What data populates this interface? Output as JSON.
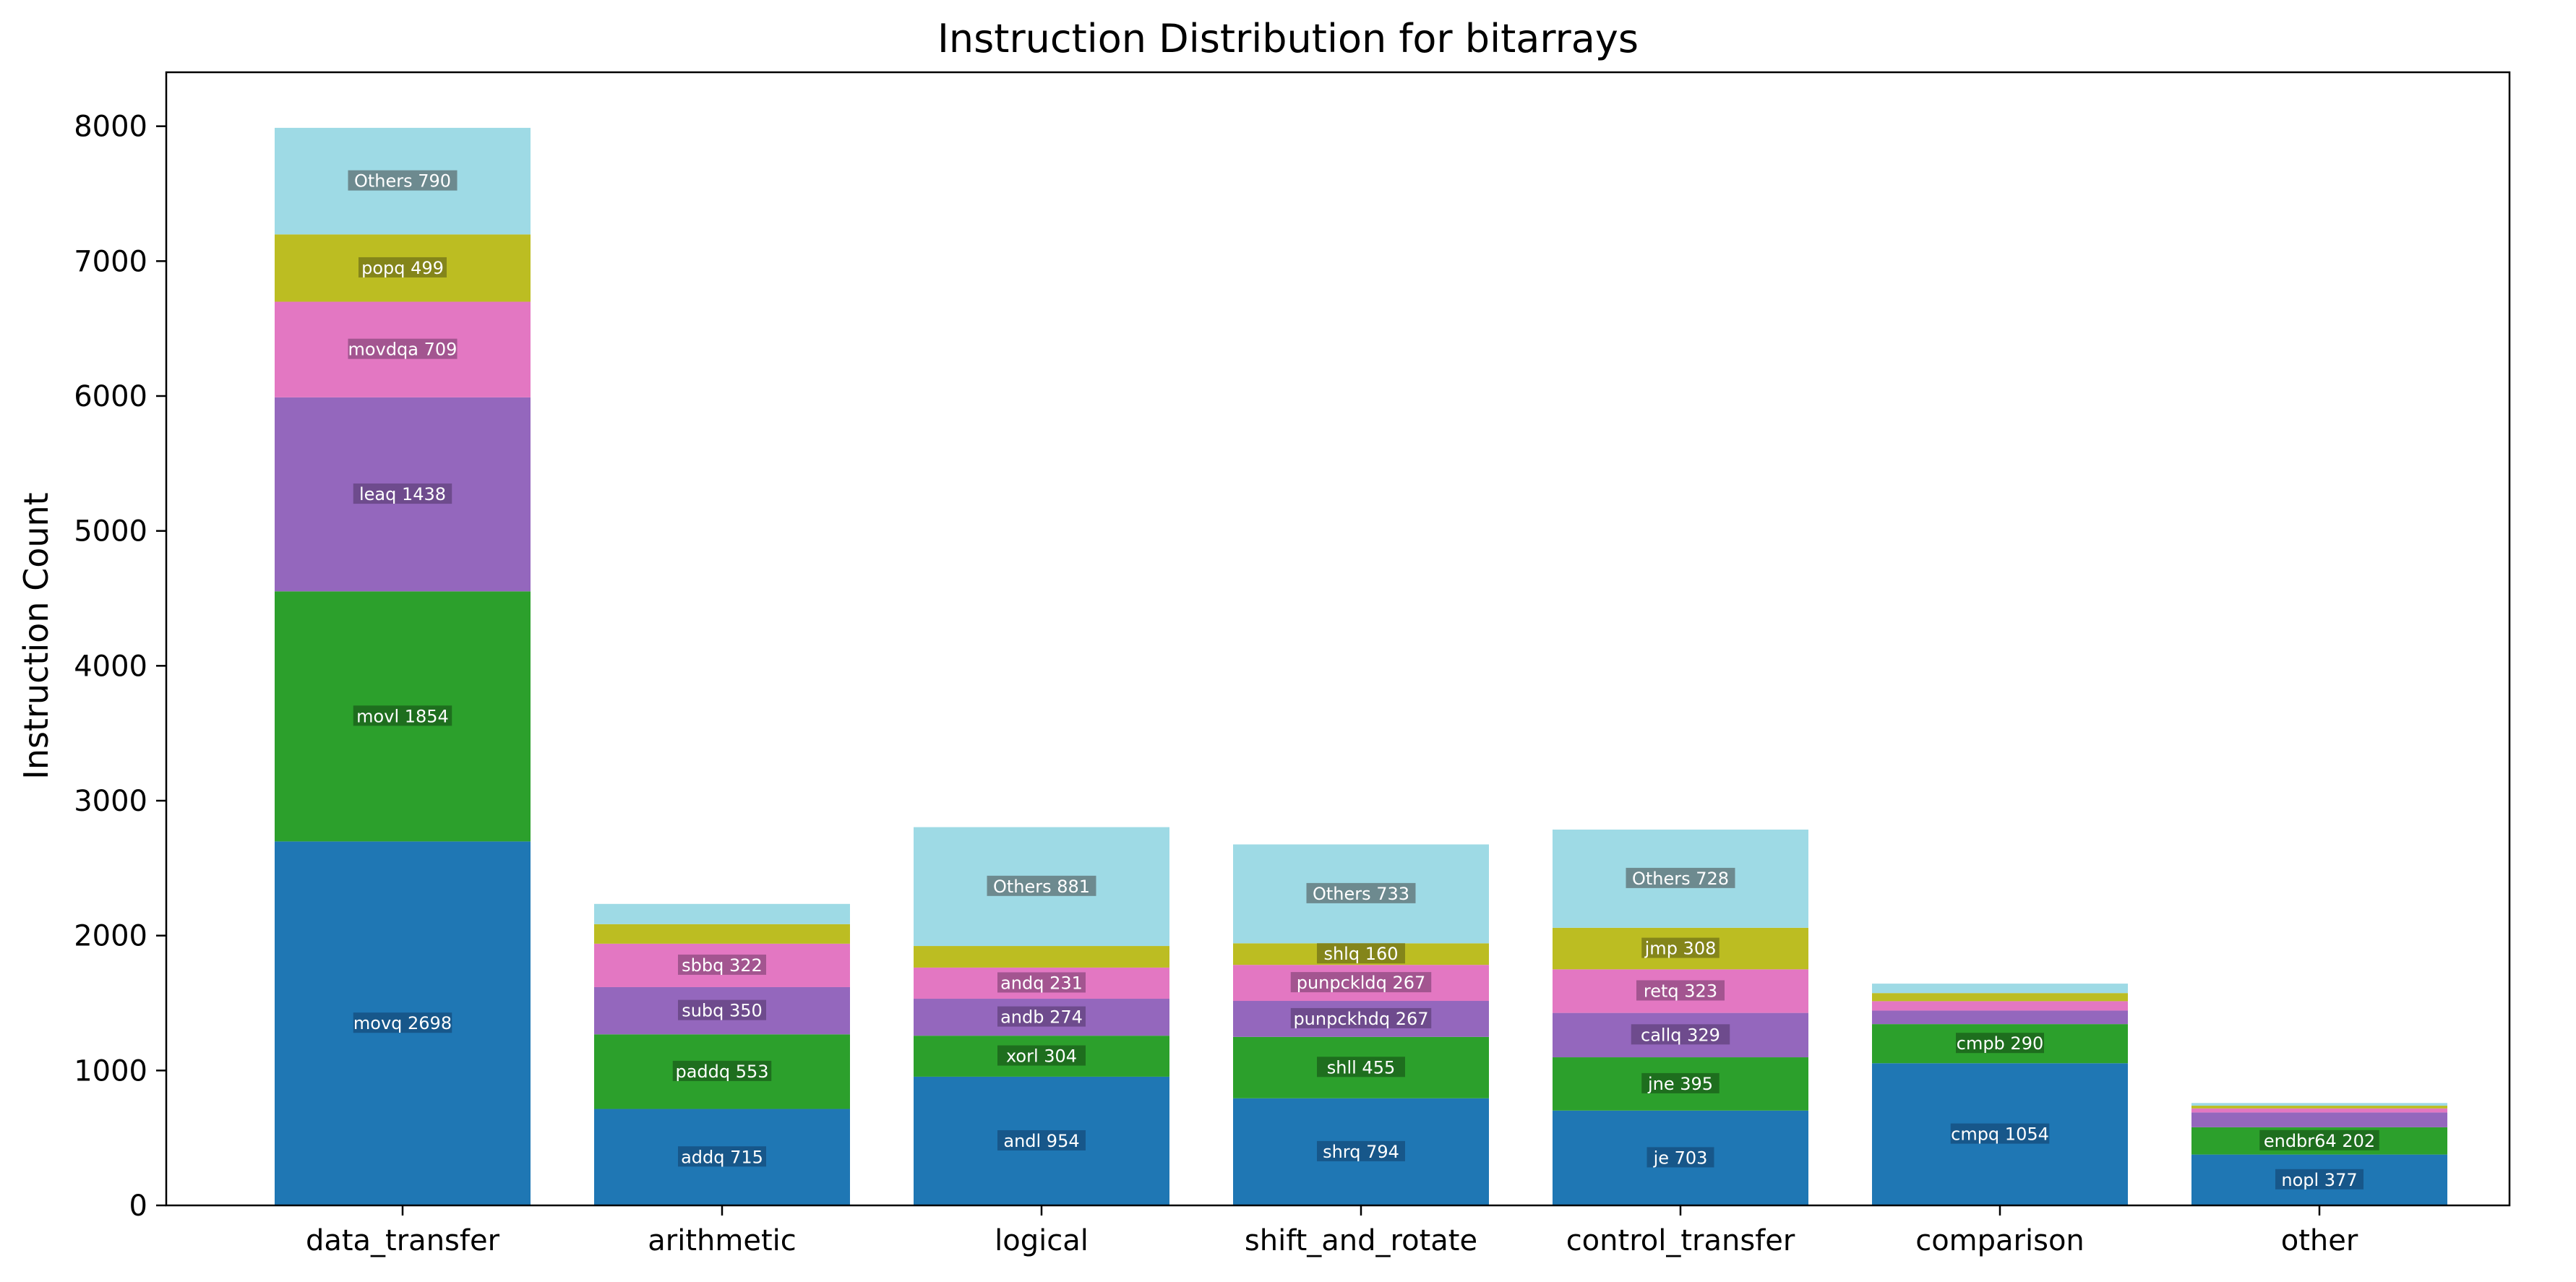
{
  "chart_data": {
    "type": "bar",
    "stacked": true,
    "title": "Instruction Distribution for bitarrays",
    "xlabel": "",
    "ylabel": "Instruction Count",
    "ylim": [
      0,
      8400
    ],
    "yticks": [
      0,
      1000,
      2000,
      3000,
      4000,
      5000,
      6000,
      7000,
      8000
    ],
    "grid": false,
    "legend": "none",
    "layer_colors": [
      "#1f77b4",
      "#2ca02c",
      "#9467bd",
      "#e377c2",
      "#bcbd22",
      "#9edae5"
    ],
    "label_box_colors": [
      "#17578a",
      "#1e6e1e",
      "#6e4b8d",
      "#a35590",
      "#84851a",
      "#6d8a8f"
    ],
    "categories": [
      {
        "name": "data_transfer",
        "segments": [
          {
            "label": "movq 2698",
            "value": 2698
          },
          {
            "label": "movl 1854",
            "value": 1854
          },
          {
            "label": "leaq 1438",
            "value": 1438
          },
          {
            "label": "movdqa 709",
            "value": 709
          },
          {
            "label": "popq 499",
            "value": 499
          },
          {
            "label": "Others 790",
            "value": 790
          }
        ]
      },
      {
        "name": "arithmetic",
        "segments": [
          {
            "label": "addq 715",
            "value": 715
          },
          {
            "label": "paddq 553",
            "value": 553
          },
          {
            "label": "subq 350",
            "value": 350
          },
          {
            "label": "sbbq 322",
            "value": 322
          },
          {
            "label": "",
            "value": 145
          },
          {
            "label": "",
            "value": 150
          }
        ]
      },
      {
        "name": "logical",
        "segments": [
          {
            "label": "andl 954",
            "value": 954
          },
          {
            "label": "xorl 304",
            "value": 304
          },
          {
            "label": "andb 274",
            "value": 274
          },
          {
            "label": "andq 231",
            "value": 231
          },
          {
            "label": "",
            "value": 160
          },
          {
            "label": "Others 881",
            "value": 881
          }
        ]
      },
      {
        "name": "shift_and_rotate",
        "segments": [
          {
            "label": "shrq 794",
            "value": 794
          },
          {
            "label": "shll 455",
            "value": 455
          },
          {
            "label": "punpckhdq 267",
            "value": 267
          },
          {
            "label": "punpckldq 267",
            "value": 267
          },
          {
            "label": "shlq 160",
            "value": 160
          },
          {
            "label": "Others 733",
            "value": 733
          }
        ]
      },
      {
        "name": "control_transfer",
        "segments": [
          {
            "label": "je 703",
            "value": 703
          },
          {
            "label": "jne 395",
            "value": 395
          },
          {
            "label": "callq 329",
            "value": 329
          },
          {
            "label": "retq 323",
            "value": 323
          },
          {
            "label": "jmp 308",
            "value": 308
          },
          {
            "label": "Others 728",
            "value": 728
          }
        ]
      },
      {
        "name": "comparison",
        "segments": [
          {
            "label": "cmpq 1054",
            "value": 1054
          },
          {
            "label": "cmpb 290",
            "value": 290
          },
          {
            "label": "",
            "value": 100
          },
          {
            "label": "",
            "value": 70
          },
          {
            "label": "",
            "value": 60
          },
          {
            "label": "",
            "value": 70
          }
        ]
      },
      {
        "name": "other",
        "segments": [
          {
            "label": "nopl 377",
            "value": 377
          },
          {
            "label": "endbr64 202",
            "value": 202
          },
          {
            "label": "",
            "value": 110
          },
          {
            "label": "",
            "value": 30
          },
          {
            "label": "",
            "value": 20
          },
          {
            "label": "",
            "value": 20
          }
        ]
      }
    ]
  }
}
